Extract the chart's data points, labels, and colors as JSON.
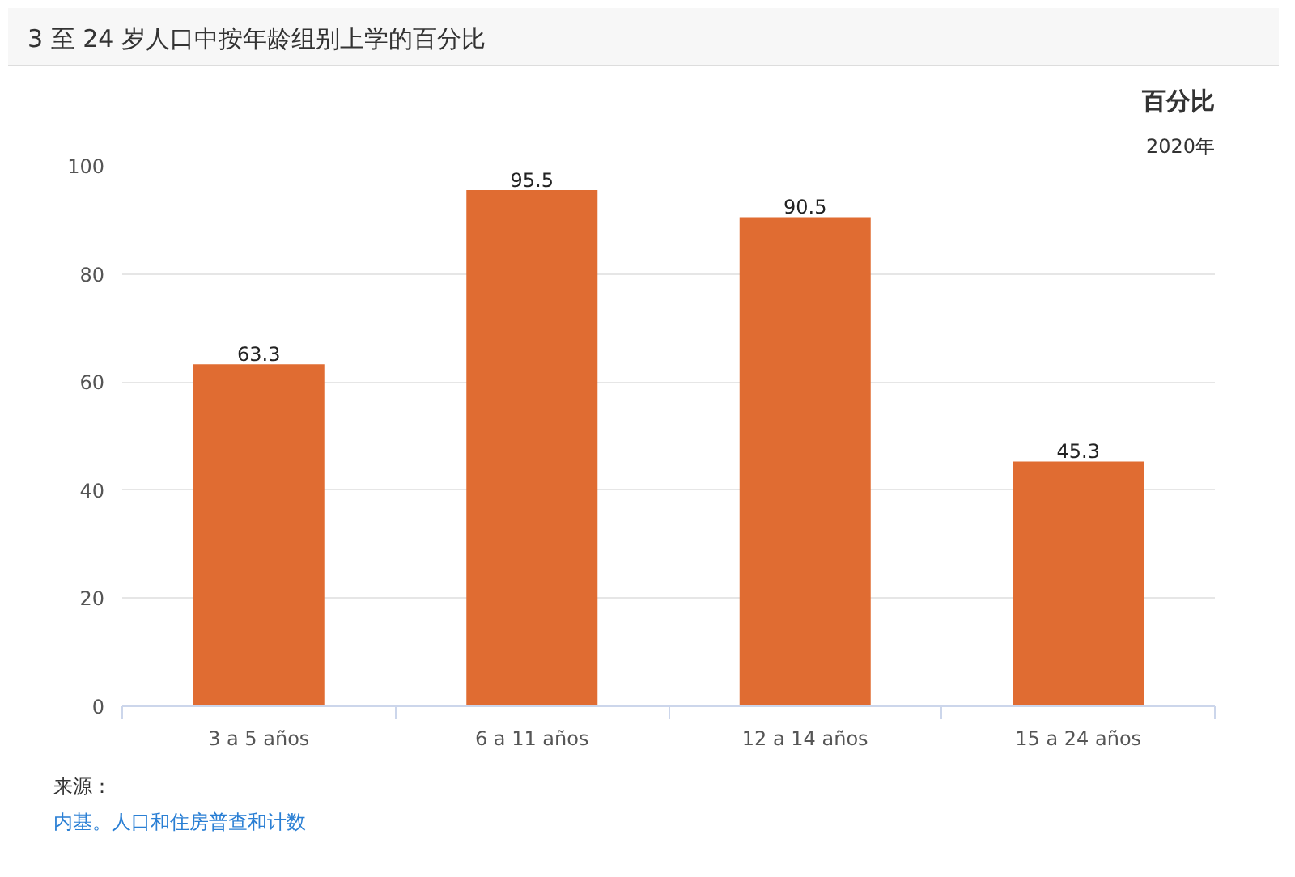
{
  "chart_data": {
    "type": "bar",
    "title": "3 至 24 岁人口中按年龄组别上学的百分比",
    "subtitle": "百分比",
    "annotations": [
      "2020年",
      "来源：",
      "内基。人口和住房普查和计数"
    ],
    "categories": [
      "3 a 5 años",
      "6 a 11 años",
      "12 a 14 años",
      "15 a 24 años"
    ],
    "values": [
      63.3,
      95.5,
      90.5,
      45.3
    ],
    "color": "#e06c32",
    "ylim": [
      0,
      100
    ],
    "yticks": [
      0,
      20,
      40,
      60,
      80,
      100
    ],
    "grid": "y",
    "data_labels": true
  }
}
